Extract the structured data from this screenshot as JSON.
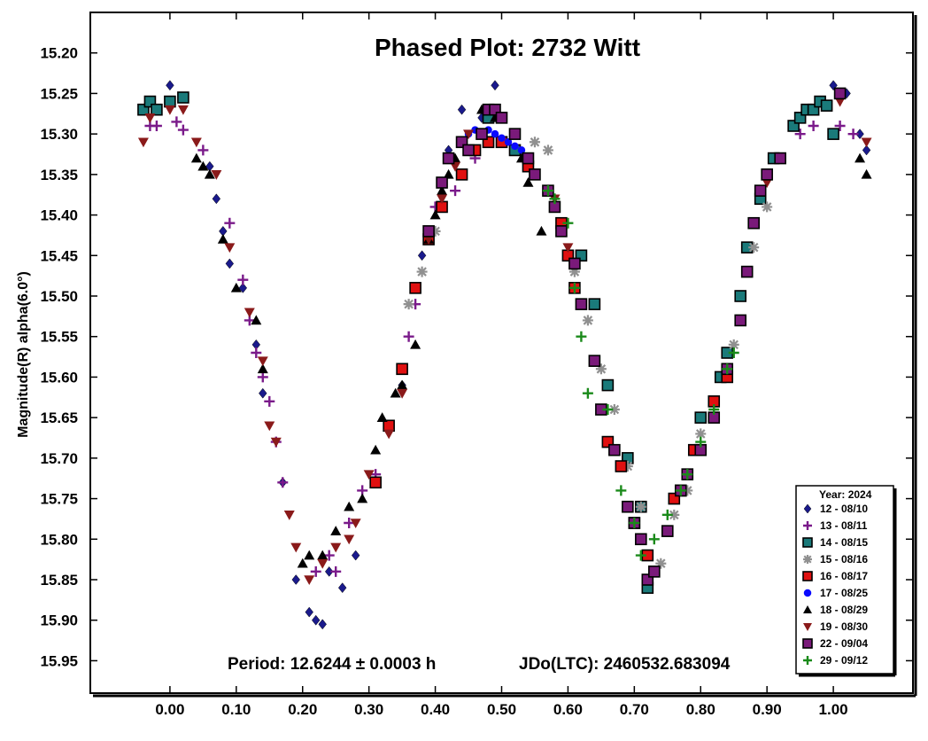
{
  "chart_data": {
    "type": "scatter",
    "title": "Phased Plot: 2732 Witt",
    "xlabel": "",
    "ylabel": "Magnitude(R) alpha(6.0°)",
    "xlim": [
      -0.12,
      1.12
    ],
    "ylim": [
      15.15,
      15.99
    ],
    "y_inverted": true,
    "x_ticks": [
      "0.00",
      "0.10",
      "0.20",
      "0.30",
      "0.40",
      "0.50",
      "0.60",
      "0.70",
      "0.80",
      "0.90",
      "1.00"
    ],
    "x_tick_values": [
      0.0,
      0.1,
      0.2,
      0.3,
      0.4,
      0.5,
      0.6,
      0.7,
      0.8,
      0.9,
      1.0
    ],
    "y_ticks": [
      "15.20",
      "15.25",
      "15.30",
      "15.35",
      "15.40",
      "15.45",
      "15.50",
      "15.55",
      "15.60",
      "15.65",
      "15.70",
      "15.75",
      "15.80",
      "15.85",
      "15.90",
      "15.95"
    ],
    "y_tick_values": [
      15.2,
      15.25,
      15.3,
      15.35,
      15.4,
      15.45,
      15.5,
      15.55,
      15.6,
      15.65,
      15.7,
      15.75,
      15.8,
      15.85,
      15.9,
      15.95
    ],
    "grid": false,
    "legend_position": "bottom-right",
    "legend_title": "Year: 2024",
    "period_text": "Period: 12.6244 ± 0.0003 h",
    "epoch_text": "JDo(LTC): 2460532.683094",
    "series": [
      {
        "name": "12 - 08/10",
        "marker": "diamond",
        "color": "#1a1a8c",
        "points": [
          [
            0.0,
            15.24
          ],
          [
            0.06,
            15.34
          ],
          [
            0.07,
            15.38
          ],
          [
            0.08,
            15.42
          ],
          [
            0.09,
            15.46
          ],
          [
            0.11,
            15.49
          ],
          [
            0.13,
            15.56
          ],
          [
            0.14,
            15.62
          ],
          [
            0.17,
            15.73
          ],
          [
            0.19,
            15.85
          ],
          [
            0.21,
            15.89
          ],
          [
            0.22,
            15.9
          ],
          [
            0.23,
            15.905
          ],
          [
            0.24,
            15.84
          ],
          [
            0.26,
            15.86
          ],
          [
            0.28,
            15.82
          ],
          [
            0.35,
            15.61
          ],
          [
            0.38,
            15.45
          ],
          [
            0.42,
            15.32
          ],
          [
            0.44,
            15.27
          ],
          [
            0.47,
            15.28
          ],
          [
            0.49,
            15.24
          ],
          [
            1.0,
            15.24
          ],
          [
            1.02,
            15.25
          ],
          [
            1.04,
            15.3
          ],
          [
            1.05,
            15.32
          ]
        ]
      },
      {
        "name": "13 - 08/11",
        "marker": "plus",
        "color": "#7a1a8a",
        "points": [
          [
            -0.03,
            15.29
          ],
          [
            -0.02,
            15.29
          ],
          [
            0.01,
            15.285
          ],
          [
            0.02,
            15.295
          ],
          [
            0.05,
            15.32
          ],
          [
            0.09,
            15.41
          ],
          [
            0.11,
            15.48
          ],
          [
            0.12,
            15.53
          ],
          [
            0.13,
            15.57
          ],
          [
            0.14,
            15.6
          ],
          [
            0.15,
            15.63
          ],
          [
            0.16,
            15.68
          ],
          [
            0.17,
            15.73
          ],
          [
            0.22,
            15.84
          ],
          [
            0.24,
            15.82
          ],
          [
            0.25,
            15.84
          ],
          [
            0.27,
            15.78
          ],
          [
            0.29,
            15.74
          ],
          [
            0.31,
            15.72
          ],
          [
            0.36,
            15.55
          ],
          [
            0.37,
            15.51
          ],
          [
            0.4,
            15.39
          ],
          [
            0.43,
            15.37
          ],
          [
            0.46,
            15.33
          ],
          [
            0.92,
            15.33
          ],
          [
            0.95,
            15.3
          ],
          [
            0.97,
            15.29
          ],
          [
            1.01,
            15.29
          ],
          [
            1.03,
            15.3
          ]
        ]
      },
      {
        "name": "14 - 08/15",
        "marker": "square",
        "color": "#1a7a7a",
        "points": [
          [
            -0.04,
            15.27
          ],
          [
            -0.03,
            15.26
          ],
          [
            -0.02,
            15.27
          ],
          [
            0.0,
            15.26
          ],
          [
            0.02,
            15.255
          ],
          [
            0.48,
            15.28
          ],
          [
            0.52,
            15.32
          ],
          [
            0.62,
            15.45
          ],
          [
            0.64,
            15.51
          ],
          [
            0.66,
            15.61
          ],
          [
            0.69,
            15.7
          ],
          [
            0.71,
            15.76
          ],
          [
            0.72,
            15.86
          ],
          [
            0.77,
            15.74
          ],
          [
            0.8,
            15.65
          ],
          [
            0.83,
            15.6
          ],
          [
            0.84,
            15.57
          ],
          [
            0.86,
            15.5
          ],
          [
            0.87,
            15.44
          ],
          [
            0.89,
            15.38
          ],
          [
            0.91,
            15.33
          ],
          [
            0.94,
            15.29
          ],
          [
            0.95,
            15.28
          ],
          [
            0.96,
            15.27
          ],
          [
            0.97,
            15.27
          ],
          [
            0.98,
            15.26
          ],
          [
            0.99,
            15.265
          ],
          [
            1.0,
            15.3
          ]
        ]
      },
      {
        "name": "15 - 08/16",
        "marker": "asterisk",
        "color": "#909090",
        "points": [
          [
            0.36,
            15.51
          ],
          [
            0.38,
            15.47
          ],
          [
            0.4,
            15.42
          ],
          [
            0.55,
            15.31
          ],
          [
            0.57,
            15.32
          ],
          [
            0.61,
            15.47
          ],
          [
            0.63,
            15.53
          ],
          [
            0.65,
            15.59
          ],
          [
            0.67,
            15.64
          ],
          [
            0.69,
            15.71
          ],
          [
            0.71,
            15.76
          ],
          [
            0.74,
            15.83
          ],
          [
            0.76,
            15.77
          ],
          [
            0.78,
            15.74
          ],
          [
            0.8,
            15.67
          ],
          [
            0.82,
            15.63
          ],
          [
            0.85,
            15.56
          ],
          [
            0.88,
            15.44
          ],
          [
            0.9,
            15.39
          ]
        ]
      },
      {
        "name": "16 - 08/17",
        "marker": "square",
        "color": "#e01010",
        "points": [
          [
            0.31,
            15.73
          ],
          [
            0.33,
            15.66
          ],
          [
            0.35,
            15.59
          ],
          [
            0.37,
            15.49
          ],
          [
            0.39,
            15.43
          ],
          [
            0.41,
            15.39
          ],
          [
            0.44,
            15.35
          ],
          [
            0.46,
            15.32
          ],
          [
            0.48,
            15.31
          ],
          [
            0.5,
            15.31
          ],
          [
            0.54,
            15.34
          ],
          [
            0.59,
            15.41
          ],
          [
            0.6,
            15.45
          ],
          [
            0.61,
            15.49
          ],
          [
            0.66,
            15.68
          ],
          [
            0.68,
            15.71
          ],
          [
            0.7,
            15.78
          ],
          [
            0.72,
            15.82
          ],
          [
            0.76,
            15.75
          ],
          [
            0.79,
            15.69
          ],
          [
            0.82,
            15.63
          ],
          [
            0.84,
            15.6
          ]
        ]
      },
      {
        "name": "17 - 08/25",
        "marker": "circle",
        "color": "#0a0aff",
        "points": [
          [
            0.45,
            15.3
          ],
          [
            0.46,
            15.295
          ],
          [
            0.47,
            15.3
          ],
          [
            0.48,
            15.295
          ],
          [
            0.49,
            15.3
          ],
          [
            0.5,
            15.305
          ],
          [
            0.51,
            15.31
          ],
          [
            0.52,
            15.315
          ],
          [
            0.53,
            15.32
          ]
        ]
      },
      {
        "name": "18 - 08/29",
        "marker": "triangle",
        "color": "#000000",
        "points": [
          [
            0.04,
            15.33
          ],
          [
            0.05,
            15.34
          ],
          [
            0.06,
            15.35
          ],
          [
            0.08,
            15.43
          ],
          [
            0.1,
            15.49
          ],
          [
            0.13,
            15.53
          ],
          [
            0.14,
            15.59
          ],
          [
            0.2,
            15.83
          ],
          [
            0.21,
            15.82
          ],
          [
            0.23,
            15.82
          ],
          [
            0.25,
            15.79
          ],
          [
            0.27,
            15.76
          ],
          [
            0.29,
            15.75
          ],
          [
            0.31,
            15.69
          ],
          [
            0.32,
            15.65
          ],
          [
            0.34,
            15.62
          ],
          [
            0.35,
            15.61
          ],
          [
            0.37,
            15.56
          ],
          [
            0.39,
            15.43
          ],
          [
            0.4,
            15.4
          ],
          [
            0.41,
            15.37
          ],
          [
            0.42,
            15.35
          ],
          [
            0.43,
            15.33
          ],
          [
            0.47,
            15.27
          ],
          [
            0.49,
            15.28
          ],
          [
            0.53,
            15.33
          ],
          [
            0.54,
            15.36
          ],
          [
            0.56,
            15.42
          ],
          [
            1.04,
            15.33
          ],
          [
            1.05,
            15.35
          ]
        ]
      },
      {
        "name": "19 - 08/30",
        "marker": "triangle-down",
        "color": "#8a1a1a",
        "points": [
          [
            -0.04,
            15.31
          ],
          [
            -0.03,
            15.28
          ],
          [
            0.0,
            15.27
          ],
          [
            0.02,
            15.27
          ],
          [
            0.04,
            15.31
          ],
          [
            0.07,
            15.35
          ],
          [
            0.09,
            15.44
          ],
          [
            0.12,
            15.52
          ],
          [
            0.14,
            15.58
          ],
          [
            0.15,
            15.66
          ],
          [
            0.16,
            15.68
          ],
          [
            0.18,
            15.77
          ],
          [
            0.19,
            15.81
          ],
          [
            0.21,
            15.85
          ],
          [
            0.23,
            15.83
          ],
          [
            0.25,
            15.81
          ],
          [
            0.27,
            15.8
          ],
          [
            0.28,
            15.78
          ],
          [
            0.3,
            15.72
          ],
          [
            0.33,
            15.67
          ],
          [
            0.35,
            15.62
          ],
          [
            0.39,
            15.43
          ],
          [
            0.41,
            15.38
          ],
          [
            0.43,
            15.34
          ],
          [
            0.45,
            15.3
          ],
          [
            0.47,
            15.3
          ],
          [
            0.5,
            15.28
          ],
          [
            0.52,
            15.3
          ],
          [
            0.58,
            15.38
          ],
          [
            0.6,
            15.44
          ],
          [
            0.9,
            15.36
          ],
          [
            0.92,
            15.33
          ],
          [
            1.01,
            15.26
          ],
          [
            1.05,
            15.31
          ]
        ]
      },
      {
        "name": "22 - 09/04",
        "marker": "square",
        "color": "#7a1a7a",
        "points": [
          [
            0.39,
            15.42
          ],
          [
            0.41,
            15.36
          ],
          [
            0.42,
            15.33
          ],
          [
            0.44,
            15.31
          ],
          [
            0.45,
            15.32
          ],
          [
            0.47,
            15.3
          ],
          [
            0.48,
            15.27
          ],
          [
            0.49,
            15.27
          ],
          [
            0.5,
            15.28
          ],
          [
            0.52,
            15.3
          ],
          [
            0.54,
            15.33
          ],
          [
            0.55,
            15.35
          ],
          [
            0.57,
            15.37
          ],
          [
            0.58,
            15.39
          ],
          [
            0.59,
            15.42
          ],
          [
            0.61,
            15.46
          ],
          [
            0.62,
            15.51
          ],
          [
            0.64,
            15.58
          ],
          [
            0.65,
            15.64
          ],
          [
            0.67,
            15.69
          ],
          [
            0.69,
            15.76
          ],
          [
            0.7,
            15.78
          ],
          [
            0.71,
            15.8
          ],
          [
            0.72,
            15.85
          ],
          [
            0.73,
            15.84
          ],
          [
            0.75,
            15.79
          ],
          [
            0.77,
            15.74
          ],
          [
            0.78,
            15.72
          ],
          [
            0.8,
            15.69
          ],
          [
            0.82,
            15.65
          ],
          [
            0.84,
            15.59
          ],
          [
            0.86,
            15.53
          ],
          [
            0.87,
            15.47
          ],
          [
            0.88,
            15.41
          ],
          [
            0.89,
            15.37
          ],
          [
            0.9,
            15.35
          ],
          [
            0.92,
            15.33
          ],
          [
            1.01,
            15.25
          ]
        ]
      },
      {
        "name": "29 - 09/12",
        "marker": "plus",
        "color": "#1a8a1a",
        "points": [
          [
            0.57,
            15.37
          ],
          [
            0.58,
            15.38
          ],
          [
            0.6,
            15.41
          ],
          [
            0.61,
            15.49
          ],
          [
            0.62,
            15.55
          ],
          [
            0.63,
            15.62
          ],
          [
            0.66,
            15.64
          ],
          [
            0.68,
            15.74
          ],
          [
            0.7,
            15.78
          ],
          [
            0.71,
            15.82
          ],
          [
            0.73,
            15.8
          ],
          [
            0.75,
            15.77
          ],
          [
            0.77,
            15.74
          ],
          [
            0.78,
            15.72
          ],
          [
            0.8,
            15.68
          ],
          [
            0.82,
            15.64
          ],
          [
            0.84,
            15.59
          ],
          [
            0.85,
            15.57
          ]
        ]
      }
    ]
  }
}
